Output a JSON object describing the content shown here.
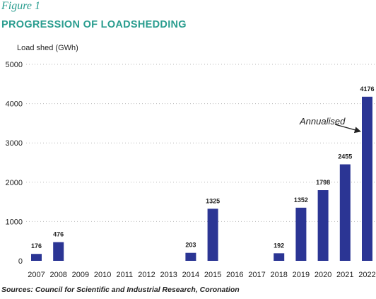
{
  "figure_label": "Figure 1",
  "title": "PROGRESSION OF LOADSHEDDING",
  "source": "Sources: Council for Scientific and Industrial Research, Coronation",
  "colors": {
    "bar": "#2b3594",
    "accent": "#2a9d8f",
    "grid": "#b8b8b8"
  },
  "chart_data": {
    "type": "bar",
    "title": "PROGRESSION OF LOADSHEDDING",
    "xlabel": "",
    "ylabel": "Load shed (GWh)",
    "ylim": [
      0,
      5000
    ],
    "yticks": [
      0,
      1000,
      2000,
      3000,
      4000,
      5000
    ],
    "ytick_labels": [
      "0",
      "1000",
      "2000",
      "3000",
      "4000",
      "5000"
    ],
    "grid": "horizontal dotted",
    "categories": [
      "2007",
      "2008",
      "2009",
      "2010",
      "2011",
      "2012",
      "2013",
      "2014",
      "2015",
      "2016",
      "2017",
      "2018",
      "2019",
      "2020",
      "2021",
      "2022"
    ],
    "values": [
      176,
      476,
      0,
      0,
      0,
      0,
      0,
      203,
      1325,
      0,
      0,
      192,
      1352,
      1798,
      2455,
      4176
    ],
    "data_labels": [
      "176",
      "476",
      "",
      "",
      "",
      "",
      "",
      "203",
      "1325",
      "",
      "",
      "192",
      "1352",
      "1798",
      "2455",
      "4176"
    ],
    "annotation": {
      "text": "Annualised",
      "target_category": "2022"
    }
  }
}
